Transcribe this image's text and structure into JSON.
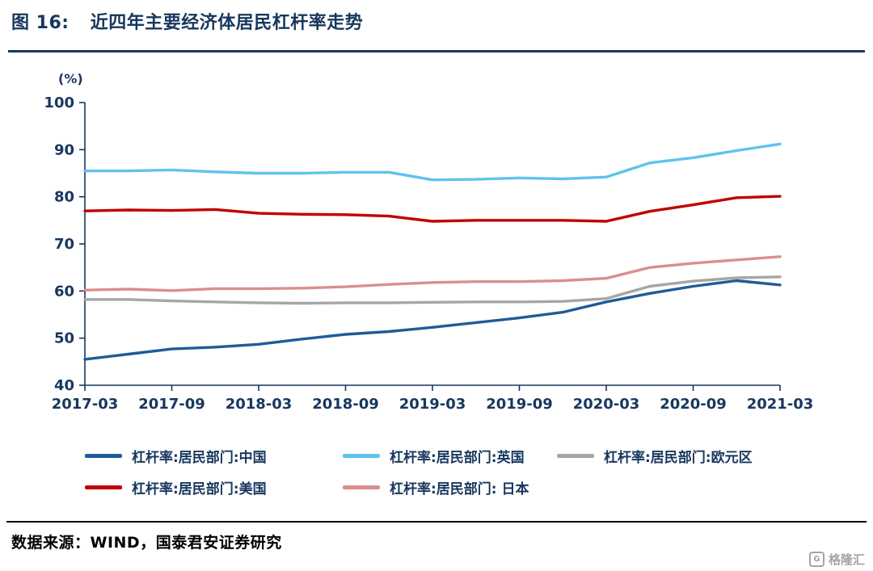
{
  "header": {
    "figure_label": "图 16:",
    "title": "近四年主要经济体居民杠杆率走势"
  },
  "theme": {
    "title_color": "#17375E",
    "axis_color": "#17375E",
    "title_rule_color": "#17375E",
    "footer_rule_color": "#000000",
    "watermark_color": "#A3A3A3"
  },
  "chart_data": {
    "type": "line",
    "unit_label": "(%)",
    "x": [
      "2017-03",
      "2017-06",
      "2017-09",
      "2017-12",
      "2018-03",
      "2018-06",
      "2018-09",
      "2018-12",
      "2019-03",
      "2019-06",
      "2019-09",
      "2019-12",
      "2020-03",
      "2020-06",
      "2020-09",
      "2020-12",
      "2021-03"
    ],
    "x_tick_labels": [
      "2017-03",
      "2017-09",
      "2018-03",
      "2018-09",
      "2019-03",
      "2019-09",
      "2020-03",
      "2020-09",
      "2021-03"
    ],
    "x_tick_every": 2,
    "ylim": [
      40,
      100
    ],
    "y_ticks": [
      40,
      50,
      60,
      70,
      80,
      90,
      100
    ],
    "grid": false,
    "legend_position": "bottom",
    "draw_order": [
      2,
      4,
      0,
      1,
      3
    ],
    "series": [
      {
        "id": "china",
        "name": "杠杆率:居民部门:中国",
        "color": "#1F5C99",
        "values": [
          45.5,
          46.6,
          47.7,
          48.1,
          48.7,
          49.8,
          50.8,
          51.4,
          52.3,
          53.3,
          54.3,
          55.5,
          57.7,
          59.5,
          61.0,
          62.2,
          61.3
        ]
      },
      {
        "id": "uk",
        "name": "杠杆率:居民部门:英国",
        "color": "#5FC3ED",
        "values": [
          85.5,
          85.5,
          85.7,
          85.3,
          85.0,
          85.0,
          85.2,
          85.2,
          83.6,
          83.7,
          84.0,
          83.8,
          84.2,
          87.2,
          88.3,
          89.8,
          91.2
        ]
      },
      {
        "id": "eurozone",
        "name": "杠杆率:居民部门:欧元区",
        "color": "#A6A6A6",
        "values": [
          58.2,
          58.2,
          57.9,
          57.7,
          57.5,
          57.4,
          57.5,
          57.5,
          57.6,
          57.7,
          57.7,
          57.8,
          58.4,
          61.0,
          62.1,
          62.8,
          63.0
        ]
      },
      {
        "id": "us",
        "name": "杠杆率:居民部门:美国",
        "color": "#C00000",
        "values": [
          77.0,
          77.2,
          77.1,
          77.3,
          76.5,
          76.3,
          76.2,
          75.9,
          74.8,
          75.0,
          75.0,
          75.0,
          74.8,
          76.9,
          78.3,
          79.8,
          80.1
        ]
      },
      {
        "id": "japan",
        "name": "杠杆率:居民部门: 日本",
        "color": "#D98F8F",
        "values": [
          60.2,
          60.4,
          60.1,
          60.5,
          60.5,
          60.6,
          60.9,
          61.4,
          61.8,
          62.0,
          62.0,
          62.2,
          62.7,
          65.0,
          65.9,
          66.6,
          67.3
        ]
      }
    ]
  },
  "legend": {
    "rows": [
      [
        0,
        1,
        2
      ],
      [
        3,
        4
      ]
    ]
  },
  "footer": {
    "source": "数据来源：WIND，国泰君安证券研究"
  },
  "watermark": {
    "logo_glyph": "G",
    "text": "格隆汇"
  }
}
